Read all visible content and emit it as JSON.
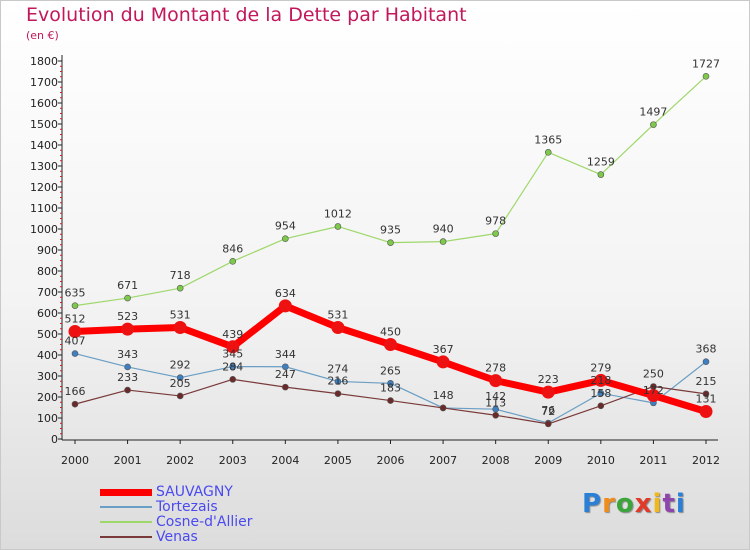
{
  "header": {
    "title": "Evolution du Montant de la Dette par Habitant",
    "subtitle": "(en €)"
  },
  "brand": {
    "text": "Proxiti",
    "letter_colors": [
      "#2a7fd6",
      "#f08c1a",
      "#3ba53b",
      "#e23a2a",
      "#f0b81a",
      "#8e44ad",
      "#2a7fd6"
    ]
  },
  "chart_data": {
    "type": "line",
    "title": "Evolution du Montant de la Dette par Habitant",
    "subtitle": "(en €)",
    "xlabel": "",
    "ylabel": "",
    "x": [
      "2000",
      "2001",
      "2002",
      "2003",
      "2004",
      "2005",
      "2006",
      "2007",
      "2008",
      "2009",
      "2010",
      "2011",
      "2012"
    ],
    "yticks": [
      "0",
      "100",
      "200",
      "300",
      "400",
      "500",
      "600",
      "700",
      "800",
      "900",
      "1000",
      "1100",
      "1200",
      "1300",
      "1400",
      "1500",
      "1600",
      "1700",
      "1800"
    ],
    "ylim": [
      0,
      1800
    ],
    "grid": false,
    "legend_position": "bottom-left",
    "series": [
      {
        "name": "SAUVAGNY",
        "color": "#ff0000",
        "marker": "#ee1111",
        "width": 7,
        "values": [
          512,
          523,
          531,
          439,
          634,
          531,
          450,
          367,
          278,
          223,
          279,
          207,
          131
        ],
        "labels": [
          "512",
          "523",
          "531",
          "439",
          "634",
          "531",
          "450",
          "367",
          "278",
          "223",
          "279",
          "",
          "131"
        ]
      },
      {
        "name": "Tortezais",
        "color": "#6a9ec4",
        "marker": "#3d7fc1",
        "width": 1.2,
        "values": [
          407,
          343,
          292,
          345,
          344,
          274,
          265,
          148,
          142,
          76,
          218,
          172,
          368
        ],
        "labels": [
          "407",
          "343",
          "292",
          "345",
          "344",
          "274",
          "265",
          "148",
          "142",
          "76",
          "218",
          "172",
          "368"
        ]
      },
      {
        "name": "Cosne-d'Allier",
        "color": "#9ed86a",
        "marker": "#7dc94a",
        "width": 1.2,
        "values": [
          635,
          671,
          718,
          846,
          954,
          1012,
          935,
          940,
          978,
          1365,
          1259,
          1497,
          1727
        ],
        "labels": [
          "635",
          "671",
          "718",
          "846",
          "954",
          "1012",
          "935",
          "940",
          "978",
          "1365",
          "1259",
          "1497",
          "1727"
        ]
      },
      {
        "name": "Venas",
        "color": "#7a3a3a",
        "marker": "#6b2a2a",
        "width": 1.2,
        "values": [
          166,
          233,
          205,
          284,
          247,
          216,
          183,
          148,
          113,
          72,
          158,
          250,
          215
        ],
        "labels": [
          "166",
          "233",
          "205",
          "284",
          "247",
          "216",
          "183",
          "",
          "113",
          "72",
          "158",
          "250",
          "215"
        ]
      }
    ]
  }
}
